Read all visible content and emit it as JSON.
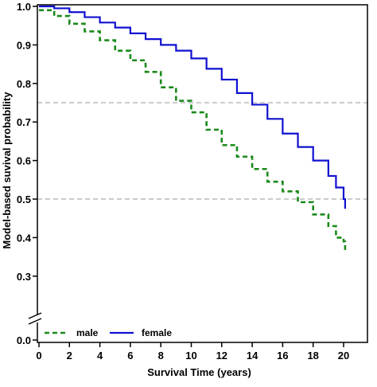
{
  "chart_data": {
    "type": "line",
    "title": "",
    "xlabel": "Survival Time (years)",
    "ylabel": "Model-based suvival probability",
    "xlim": [
      0,
      22
    ],
    "ylim": [
      0.25,
      1.0
    ],
    "axis_break": "0.0",
    "x_ticks": [
      0,
      2,
      4,
      6,
      8,
      10,
      12,
      14,
      16,
      18,
      20
    ],
    "y_ticks": [
      {
        "value": 0.3,
        "label": "0.3"
      },
      {
        "value": 0.4,
        "label": "0.4"
      },
      {
        "value": 0.5,
        "label": "0.5"
      },
      {
        "value": 0.6,
        "label": "0.6"
      },
      {
        "value": 0.7,
        "label": "0.7"
      },
      {
        "value": 0.8,
        "label": "0.8"
      },
      {
        "value": 0.9,
        "label": "0.9"
      },
      {
        "value": 1.0,
        "label": "1.0"
      }
    ],
    "y_break_label": "0.0",
    "reference_lines": [
      0.75,
      0.5
    ],
    "grid": false,
    "legend_position": "bottom-left",
    "series": [
      {
        "name": "female",
        "color": "#1010d0",
        "style": "solid",
        "x": [
          0,
          1,
          2,
          3,
          4,
          5,
          6,
          7,
          8,
          9,
          10,
          11,
          12,
          13,
          14,
          15,
          16,
          17,
          18,
          19,
          19.5,
          20,
          20.1
        ],
        "y": [
          1.0,
          0.995,
          0.985,
          0.972,
          0.958,
          0.945,
          0.93,
          0.915,
          0.9,
          0.885,
          0.865,
          0.838,
          0.81,
          0.775,
          0.745,
          0.708,
          0.67,
          0.635,
          0.6,
          0.56,
          0.53,
          0.5,
          0.475
        ]
      },
      {
        "name": "male",
        "color": "#1a8a1a",
        "style": "dashed",
        "x": [
          0,
          1,
          2,
          3,
          4,
          5,
          6,
          7,
          8,
          9,
          10,
          11,
          12,
          13,
          14,
          15,
          16,
          17,
          18,
          19,
          19.5,
          20,
          20.1
        ],
        "y": [
          0.99,
          0.975,
          0.955,
          0.935,
          0.912,
          0.885,
          0.86,
          0.83,
          0.79,
          0.755,
          0.725,
          0.68,
          0.64,
          0.61,
          0.578,
          0.545,
          0.52,
          0.492,
          0.46,
          0.43,
          0.4,
          0.39,
          0.36
        ]
      }
    ]
  }
}
